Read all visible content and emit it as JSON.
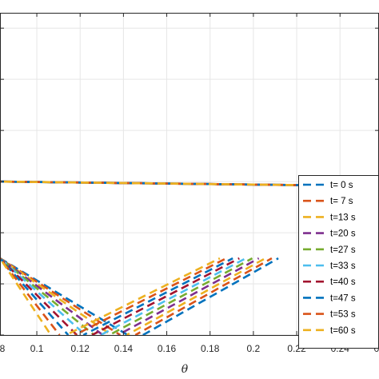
{
  "chart_data": {
    "type": "line",
    "title": "",
    "xlabel": "θ",
    "ylabel": "",
    "xlim": [
      0.083,
      0.258
    ],
    "ylim": [
      0,
      6.3
    ],
    "grid": true,
    "line_style": "dashed",
    "legend_position": "right",
    "x_ticks": [
      0.1,
      0.12,
      0.14,
      0.16,
      0.18,
      0.2,
      0.22,
      0.24
    ],
    "x_tick_labels": [
      "0.1",
      "0.12",
      "0.14",
      "0.16",
      "0.18",
      "0.2",
      "0.22",
      "0.24"
    ],
    "x_partial_label_left": "8",
    "x_partial_label_right": "0",
    "y_ticks": [
      0,
      1,
      2,
      3,
      4,
      5,
      6
    ],
    "series": [
      {
        "name": "t= 0 s",
        "color": "#0072BD",
        "x": [
          0.083,
          0.223,
          0.083,
          0.142,
          0.149,
          0.2115
        ],
        "y": [
          3.0,
          2.93,
          1.5,
          0.0,
          0.0,
          1.5
        ]
      },
      {
        "name": "t= 7 s",
        "color": "#D95319",
        "x": [
          0.083,
          0.223,
          0.083,
          0.1385,
          0.1455,
          0.2085
        ],
        "y": [
          3.0,
          2.93,
          1.5,
          0.0,
          0.0,
          1.5
        ]
      },
      {
        "name": "t=13 s",
        "color": "#EDB120",
        "x": [
          0.083,
          0.223,
          0.083,
          0.1345,
          0.1415,
          0.2055
        ],
        "y": [
          3.0,
          2.93,
          1.5,
          0.0,
          0.0,
          1.5
        ]
      },
      {
        "name": "t=20 s",
        "color": "#7E2F8E",
        "x": [
          0.083,
          0.223,
          0.083,
          0.1305,
          0.1375,
          0.2025
        ],
        "y": [
          3.0,
          2.93,
          1.5,
          0.0,
          0.0,
          1.5
        ]
      },
      {
        "name": "t=27 s",
        "color": "#77AC30",
        "x": [
          0.083,
          0.223,
          0.083,
          0.1265,
          0.1335,
          0.1995
        ],
        "y": [
          3.0,
          2.93,
          1.5,
          0.0,
          0.0,
          1.5
        ]
      },
      {
        "name": "t=33 s",
        "color": "#4DBEEE",
        "x": [
          0.083,
          0.223,
          0.083,
          0.1225,
          0.1295,
          0.1965
        ],
        "y": [
          3.0,
          2.93,
          1.5,
          0.0,
          0.0,
          1.5
        ]
      },
      {
        "name": "t=40 s",
        "color": "#A2142F",
        "x": [
          0.083,
          0.223,
          0.083,
          0.1185,
          0.1255,
          0.1935
        ],
        "y": [
          3.0,
          2.93,
          1.5,
          0.0,
          0.0,
          1.5
        ]
      },
      {
        "name": "t=47 s",
        "color": "#0072BD",
        "x": [
          0.083,
          0.223,
          0.083,
          0.1145,
          0.1215,
          0.1905
        ],
        "y": [
          3.0,
          2.93,
          1.5,
          0.0,
          0.0,
          1.5
        ]
      },
      {
        "name": "t=53 s",
        "color": "#D95319",
        "x": [
          0.083,
          0.223,
          0.083,
          0.1105,
          0.1175,
          0.1875
        ],
        "y": [
          3.0,
          2.93,
          1.5,
          0.0,
          0.0,
          1.5
        ]
      },
      {
        "name": "t=60 s",
        "color": "#EDB120",
        "x": [
          0.083,
          0.223,
          0.083,
          0.1065,
          0.1135,
          0.1845
        ],
        "y": [
          3.0,
          2.93,
          1.5,
          0.0,
          0.0,
          1.5
        ]
      }
    ]
  }
}
